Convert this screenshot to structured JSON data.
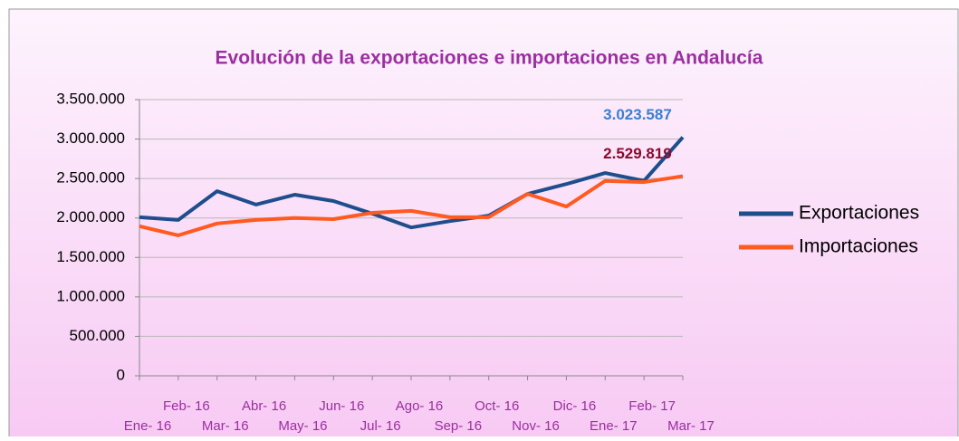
{
  "chart_data": {
    "type": "line",
    "title": "Evolución de la exportaciones e importaciones en Andalucía",
    "categories": [
      "Ene- 16",
      "Feb- 16",
      "Mar- 16",
      "Abr- 16",
      "May- 16",
      "Jun- 16",
      "Jul- 16",
      "Ago- 16",
      "Sep- 16",
      "Oct- 16",
      "Nov- 16",
      "Dic- 16",
      "Ene- 17",
      "Feb- 17",
      "Mar- 17"
    ],
    "series": [
      {
        "name": "Exportaciones",
        "color": "#1f4e8c",
        "label_color": "#3a7fd0",
        "values": [
          2010000,
          1975000,
          2340000,
          2170000,
          2295000,
          2215000,
          2055000,
          1880000,
          1960000,
          2030000,
          2305000,
          2430000,
          2570000,
          2470000,
          3023587
        ],
        "value_labels": [
          null,
          null,
          null,
          null,
          null,
          null,
          null,
          null,
          null,
          null,
          null,
          null,
          null,
          null,
          "3.023.587"
        ]
      },
      {
        "name": "Importaciones",
        "color": "#ff5a1f",
        "label_color": "#8b0a2e",
        "values": [
          1895000,
          1780000,
          1930000,
          1975000,
          2000000,
          1985000,
          2065000,
          2090000,
          2010000,
          2010000,
          2305000,
          2145000,
          2470000,
          2455000,
          2529819
        ],
        "value_labels": [
          null,
          null,
          null,
          null,
          null,
          null,
          null,
          null,
          null,
          null,
          null,
          null,
          null,
          null,
          "2.529.819"
        ]
      }
    ],
    "ylim": [
      0,
      3500000
    ],
    "yticks": [
      0,
      {
        "value": 500000,
        "label": "500.000"
      },
      {
        "value": 1000000,
        "label": "1.000.000"
      },
      {
        "value": 1500000,
        "label": "1.500.000"
      },
      {
        "value": 2000000,
        "label": "2.000.000"
      },
      {
        "value": 2500000,
        "label": "2.500.000"
      },
      {
        "value": 3000000,
        "label": "3.000.000"
      },
      {
        "value": 3500000,
        "label": "3.500.000"
      }
    ],
    "grid": true,
    "legend": "right"
  }
}
